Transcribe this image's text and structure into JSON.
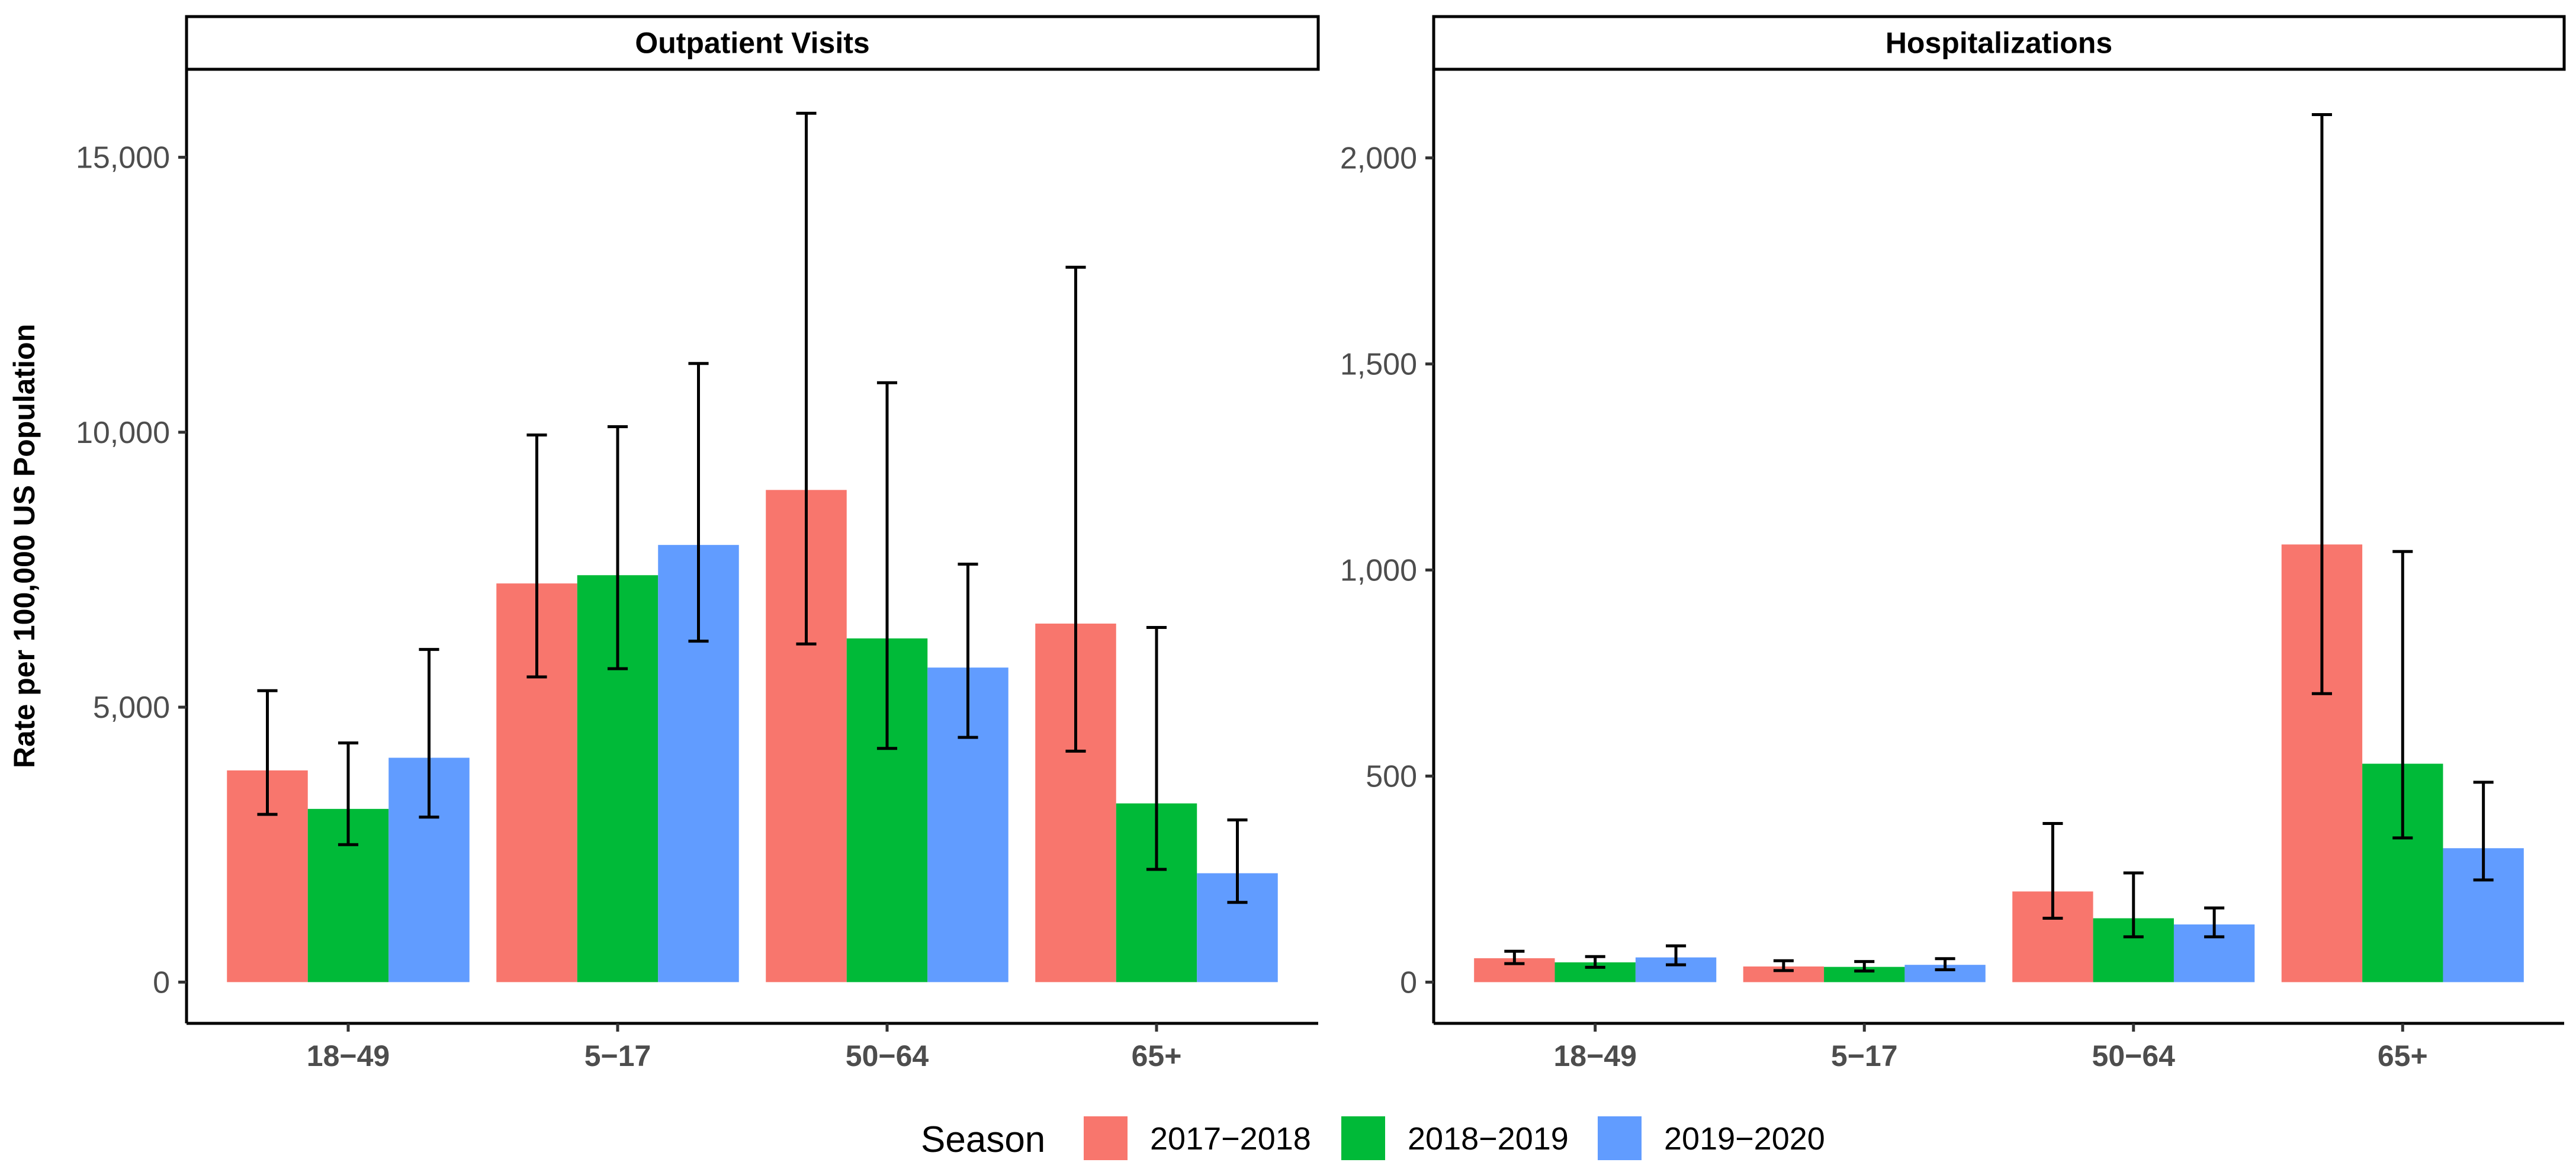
{
  "chart_data": {
    "type": "bar",
    "ylabel": "Rate per 100,000 US Population",
    "legend": {
      "title": "Season",
      "position": "bottom",
      "items": [
        "2017−2018",
        "2018−2019",
        "2019−2020"
      ]
    },
    "colors": [
      "#F8766D",
      "#00BA38",
      "#619CFF"
    ],
    "panels": [
      {
        "title": "Outpatient Visits",
        "categories": [
          "18−49",
          "5−17",
          "50−64",
          "65+"
        ],
        "ylim": [
          -750,
          16600
        ],
        "yticks": [
          0,
          5000,
          10000,
          15000
        ],
        "ytick_labels": [
          "0",
          "5,000",
          "10,000",
          "15,000"
        ],
        "series": [
          {
            "name": "2017−2018",
            "values": [
              3850,
              7250,
              8950,
              6520
            ],
            "ci_low": [
              3050,
              5550,
              6150,
              4200
            ],
            "ci_high": [
              5300,
              9950,
              15800,
              13000
            ]
          },
          {
            "name": "2018−2019",
            "values": [
              3150,
              7400,
              6250,
              3250
            ],
            "ci_low": [
              2500,
              5700,
              4250,
              2050
            ],
            "ci_high": [
              4350,
              10100,
              10900,
              6450
            ]
          },
          {
            "name": "2019−2020",
            "values": [
              4080,
              7950,
              5720,
              1980
            ],
            "ci_low": [
              3000,
              6200,
              4450,
              1450
            ],
            "ci_high": [
              6050,
              11250,
              7600,
              2950
            ]
          }
        ]
      },
      {
        "title": "Hospitalizations",
        "categories": [
          "18−49",
          "5−17",
          "50−64",
          "65+"
        ],
        "ylim": [
          -100,
          2215
        ],
        "yticks": [
          0,
          500,
          1000,
          1500,
          2000
        ],
        "ytick_labels": [
          "0",
          "500",
          "1,000",
          "1,500",
          "2,000"
        ],
        "series": [
          {
            "name": "2017−2018",
            "values": [
              58,
              38,
              220,
              1062
            ],
            "ci_low": [
              45,
              28,
              155,
              700
            ],
            "ci_high": [
              75,
              52,
              385,
              2105
            ]
          },
          {
            "name": "2018−2019",
            "values": [
              48,
              37,
              155,
              530
            ],
            "ci_low": [
              36,
              27,
              110,
              350
            ],
            "ci_high": [
              62,
              50,
              265,
              1045
            ]
          },
          {
            "name": "2019−2020",
            "values": [
              60,
              42,
              140,
              325
            ],
            "ci_low": [
              42,
              30,
              110,
              248
            ],
            "ci_high": [
              88,
              57,
              180,
              485
            ]
          }
        ]
      }
    ]
  }
}
